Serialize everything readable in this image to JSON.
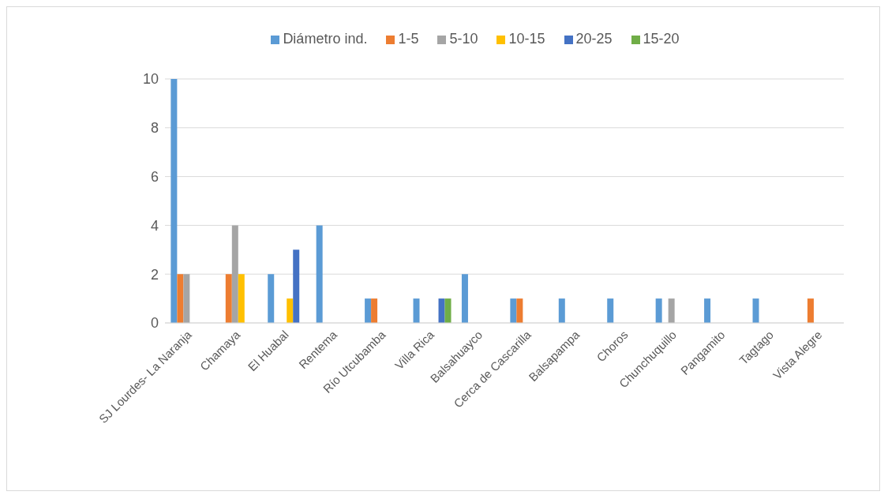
{
  "chart_data": {
    "type": "bar",
    "categories": [
      "SJ Lourdes- La Naranja",
      "Chamaya",
      "El Huabal",
      "Rentema",
      "Río Utcubamba",
      "Villa Rica",
      "Balsahuayco",
      "Cerca de Cascarilla",
      "Balsapampa",
      "Choros",
      "Chunchuquillo",
      "Pangamito",
      "Tagtago",
      "Vista Alegre"
    ],
    "series": [
      {
        "name": "Diámetro ind.",
        "color": "#5b9bd5",
        "values": [
          10,
          null,
          2,
          4,
          1,
          1,
          2,
          1,
          1,
          1,
          1,
          1,
          1,
          null
        ]
      },
      {
        "name": "1-5",
        "color": "#ed7d31",
        "values": [
          2,
          2,
          null,
          null,
          1,
          null,
          null,
          1,
          null,
          null,
          null,
          null,
          null,
          1
        ]
      },
      {
        "name": "5-10",
        "color": "#a5a5a5",
        "values": [
          2,
          4,
          null,
          null,
          null,
          null,
          null,
          null,
          null,
          null,
          1,
          null,
          null,
          null
        ]
      },
      {
        "name": "10-15",
        "color": "#ffc000",
        "values": [
          null,
          2,
          1,
          null,
          null,
          null,
          null,
          null,
          null,
          null,
          null,
          null,
          null,
          null
        ]
      },
      {
        "name": "20-25",
        "color": "#4472c4",
        "values": [
          null,
          null,
          3,
          null,
          null,
          1,
          null,
          null,
          null,
          null,
          null,
          null,
          null,
          null
        ]
      },
      {
        "name": "15-20",
        "color": "#70ad47",
        "values": [
          null,
          null,
          null,
          null,
          null,
          1,
          null,
          null,
          null,
          null,
          null,
          null,
          null,
          null
        ]
      }
    ],
    "ylim": [
      0,
      10
    ],
    "yticks": [
      0,
      2,
      4,
      6,
      8,
      10
    ],
    "grid": "y",
    "legend": "top"
  }
}
